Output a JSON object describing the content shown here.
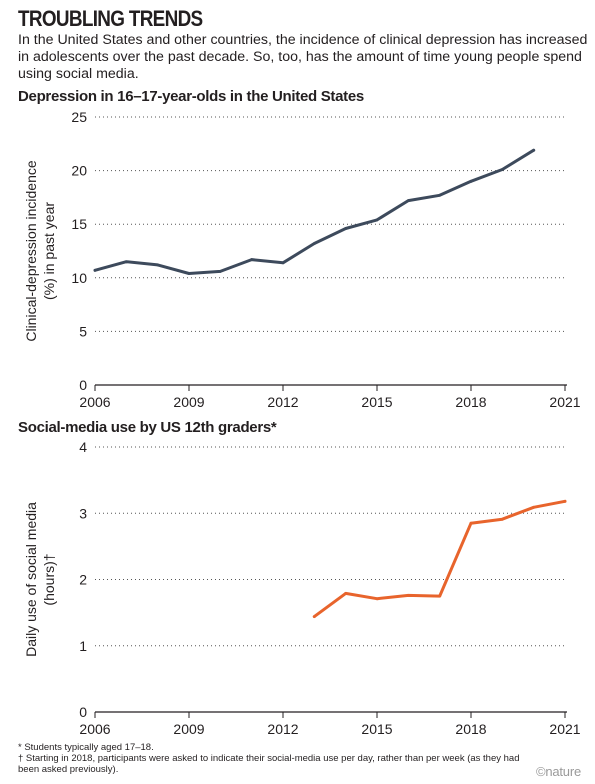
{
  "header": {
    "title": "TROUBLING TRENDS",
    "intro": "In the United States and other countries, the incidence of clinical depression has increased in adolescents over the past decade. So, too, has the amount of time young people spend using social media."
  },
  "chart_data": [
    {
      "type": "line",
      "title": "Depression in 16–17-year-olds in the United States",
      "xlabel": "",
      "ylabel_line1": "Clinical-depression incidence",
      "ylabel_line2": "(%) in past year",
      "xlim": [
        2006,
        2021
      ],
      "ylim": [
        0,
        25
      ],
      "xticks": [
        2006,
        2009,
        2012,
        2015,
        2018,
        2021
      ],
      "yticks": [
        0,
        5,
        10,
        15,
        20,
        25
      ],
      "grid": "dotted horizontal",
      "color": "#3d4a5c",
      "series": [
        {
          "x": [
            2006,
            2007,
            2008,
            2009,
            2010,
            2011,
            2012,
            2013,
            2014,
            2015,
            2016,
            2017,
            2018,
            2019,
            2020
          ],
          "values": [
            10.7,
            11.5,
            11.2,
            10.4,
            10.6,
            11.7,
            11.4,
            13.2,
            14.6,
            15.4,
            17.2,
            17.7,
            19.0,
            20.1,
            21.9
          ]
        }
      ]
    },
    {
      "type": "line",
      "title": "Social-media use by US 12th graders*",
      "xlabel": "",
      "ylabel_line1": "Daily use of social media",
      "ylabel_line2": "(hours)†",
      "xlim": [
        2006,
        2021
      ],
      "ylim": [
        0,
        4
      ],
      "xticks": [
        2006,
        2009,
        2012,
        2015,
        2018,
        2021
      ],
      "yticks": [
        0,
        1,
        2,
        3,
        4
      ],
      "grid": "dotted horizontal",
      "color": "#e8642c",
      "series": [
        {
          "x": [
            2013,
            2014,
            2015,
            2016,
            2017,
            2018,
            2019,
            2020,
            2021
          ],
          "values": [
            1.44,
            1.79,
            1.71,
            1.76,
            1.75,
            2.85,
            2.91,
            3.09,
            3.18
          ]
        }
      ]
    }
  ],
  "footnotes": {
    "star": "* Students typically aged 17–18.",
    "dagger": "† Starting in 2018, participants were asked to indicate their social-media use per day, rather than per week (as they had been asked previously)."
  },
  "logo": "©nature"
}
